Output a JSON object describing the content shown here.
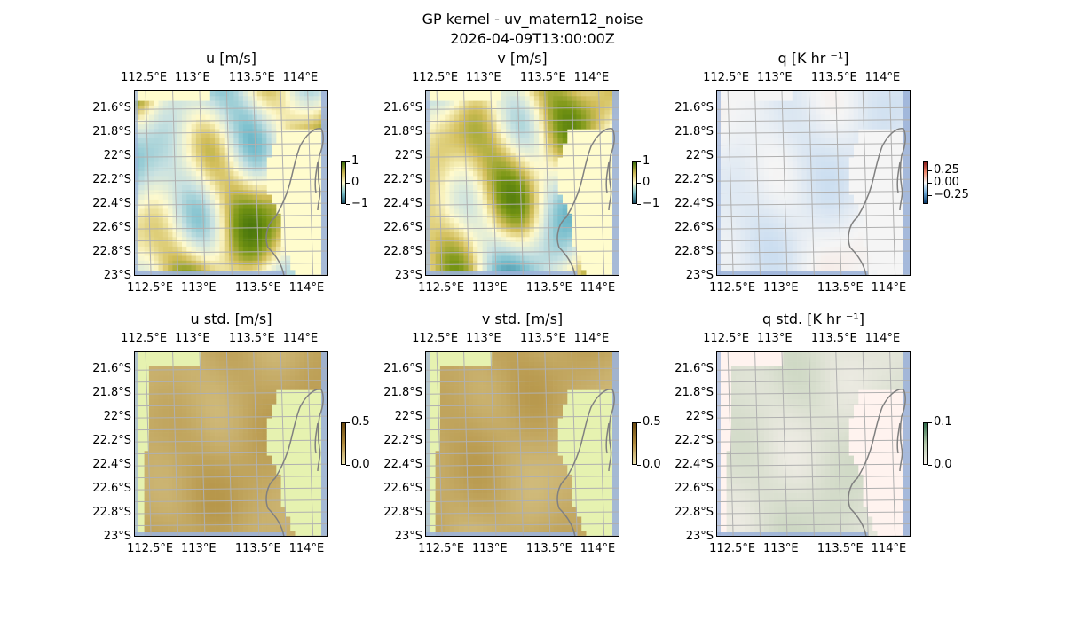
{
  "figure": {
    "title_line1": "GP kernel - uv_matern12_noise",
    "title_line2": "2026-04-09T13:00:00Z"
  },
  "axes": {
    "lon_ticks": [
      "112.5°E",
      "113°E",
      "113.5°E",
      "114°E"
    ],
    "lat_ticks": [
      "21.6°S",
      "21.8°S",
      "22°S",
      "22.2°S",
      "22.4°S",
      "22.6°S",
      "22.8°S",
      "23°S"
    ]
  },
  "panels": [
    {
      "title": "u [m/s]",
      "cbar_ticks": [
        "1",
        "0",
        "−1"
      ],
      "cmap": "diverging-brbg"
    },
    {
      "title": "v [m/s]",
      "cbar_ticks": [
        "1",
        "0",
        "−1"
      ],
      "cmap": "diverging-brbg"
    },
    {
      "title": "q [K hr ⁻¹]",
      "cbar_ticks": [
        "0.25",
        "0.00",
        "−0.25"
      ],
      "cmap": "diverging-rdbu"
    },
    {
      "title": "u std. [m/s]",
      "cbar_ticks": [
        "0.5",
        "0.0"
      ],
      "cmap": "sequential-brown"
    },
    {
      "title": "v std. [m/s]",
      "cbar_ticks": [
        "0.5",
        "0.0"
      ],
      "cmap": "sequential-brown"
    },
    {
      "title": "q std. [K hr ⁻¹]",
      "cbar_ticks": [
        "0.1",
        "0.0"
      ],
      "cmap": "sequential-green"
    }
  ],
  "colors": {
    "ocean_edge": "#9cb2d8",
    "coastline": "#808080",
    "gridline": "#b0b0b0"
  },
  "chart_data": {
    "type": "heatmap",
    "lon_range": [
      112.4,
      114.2
    ],
    "lat_range": [
      -23.0,
      -21.45
    ],
    "panels": [
      {
        "variable": "u",
        "units": "m/s",
        "clim": [
          -1,
          1
        ]
      },
      {
        "variable": "v",
        "units": "m/s",
        "clim": [
          -1,
          1
        ]
      },
      {
        "variable": "q",
        "units": "K hr^-1",
        "clim": [
          -0.3,
          0.3
        ]
      },
      {
        "variable": "u std.",
        "units": "m/s",
        "clim": [
          0,
          0.5
        ]
      },
      {
        "variable": "v std.",
        "units": "m/s",
        "clim": [
          0,
          0.5
        ]
      },
      {
        "variable": "q std.",
        "units": "K hr^-1",
        "clim": [
          0,
          0.1
        ]
      }
    ],
    "grid": true
  }
}
